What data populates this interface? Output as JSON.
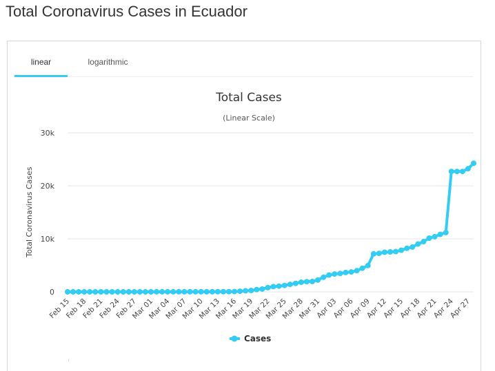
{
  "page": {
    "title": "Total Coronavirus Cases in Ecuador"
  },
  "tabs": [
    {
      "label": "linear",
      "active": true
    },
    {
      "label": "logarithmic",
      "active": false
    }
  ],
  "colors": {
    "series": "#33ccf2",
    "grid": "#e6e6e6",
    "accent": "#33ccf2"
  },
  "chart_data": {
    "type": "line",
    "title": "Total Cases",
    "subtitle": "(Linear Scale)",
    "ylabel": "Total Coronavirus Cases",
    "xlabel": "",
    "ylim": [
      0,
      30000
    ],
    "yticks": [
      0,
      10000,
      20000,
      30000
    ],
    "ytick_labels": [
      "0",
      "10k",
      "20k",
      "30k"
    ],
    "grid": true,
    "legend": "bottom-center",
    "x_tick_labels": [
      "Feb 15",
      "Feb 18",
      "Feb 21",
      "Feb 24",
      "Feb 27",
      "Mar 01",
      "Mar 04",
      "Mar 07",
      "Mar 10",
      "Mar 13",
      "Mar 16",
      "Mar 19",
      "Mar 22",
      "Mar 25",
      "Mar 28",
      "Mar 31",
      "Apr 03",
      "Apr 06",
      "Apr 09",
      "Apr 12",
      "Apr 15",
      "Apr 18",
      "Apr 21",
      "Apr 24",
      "Apr 27"
    ],
    "series": [
      {
        "name": "Cases",
        "x": [
          "Feb 15",
          "Feb 16",
          "Feb 17",
          "Feb 18",
          "Feb 19",
          "Feb 20",
          "Feb 21",
          "Feb 22",
          "Feb 23",
          "Feb 24",
          "Feb 25",
          "Feb 26",
          "Feb 27",
          "Feb 28",
          "Feb 29",
          "Mar 01",
          "Mar 02",
          "Mar 03",
          "Mar 04",
          "Mar 05",
          "Mar 06",
          "Mar 07",
          "Mar 08",
          "Mar 09",
          "Mar 10",
          "Mar 11",
          "Mar 12",
          "Mar 13",
          "Mar 14",
          "Mar 15",
          "Mar 16",
          "Mar 17",
          "Mar 18",
          "Mar 19",
          "Mar 20",
          "Mar 21",
          "Mar 22",
          "Mar 23",
          "Mar 24",
          "Mar 25",
          "Mar 26",
          "Mar 27",
          "Mar 28",
          "Mar 29",
          "Mar 30",
          "Mar 31",
          "Apr 01",
          "Apr 02",
          "Apr 03",
          "Apr 04",
          "Apr 05",
          "Apr 06",
          "Apr 07",
          "Apr 08",
          "Apr 09",
          "Apr 10",
          "Apr 11",
          "Apr 12",
          "Apr 13",
          "Apr 14",
          "Apr 15",
          "Apr 16",
          "Apr 17",
          "Apr 18",
          "Apr 19",
          "Apr 20",
          "Apr 21",
          "Apr 22",
          "Apr 23",
          "Apr 24",
          "Apr 25",
          "Apr 26",
          "Apr 27",
          "Apr 28"
        ],
        "values": [
          0,
          0,
          0,
          0,
          0,
          0,
          0,
          0,
          0,
          0,
          0,
          0,
          0,
          0,
          0,
          6,
          7,
          10,
          10,
          13,
          14,
          14,
          15,
          15,
          17,
          17,
          19,
          23,
          28,
          37,
          58,
          111,
          199,
          260,
          426,
          532,
          789,
          981,
          1082,
          1211,
          1403,
          1595,
          1823,
          1924,
          1962,
          2240,
          2748,
          3163,
          3368,
          3465,
          3646,
          3747,
          3995,
          4450,
          4965,
          7161,
          7257,
          7466,
          7529,
          7603,
          7858,
          8225,
          8450,
          9022,
          9468,
          10128,
          10398,
          10850,
          11183,
          22719,
          22719,
          22719,
          23240,
          24258
        ]
      }
    ]
  }
}
